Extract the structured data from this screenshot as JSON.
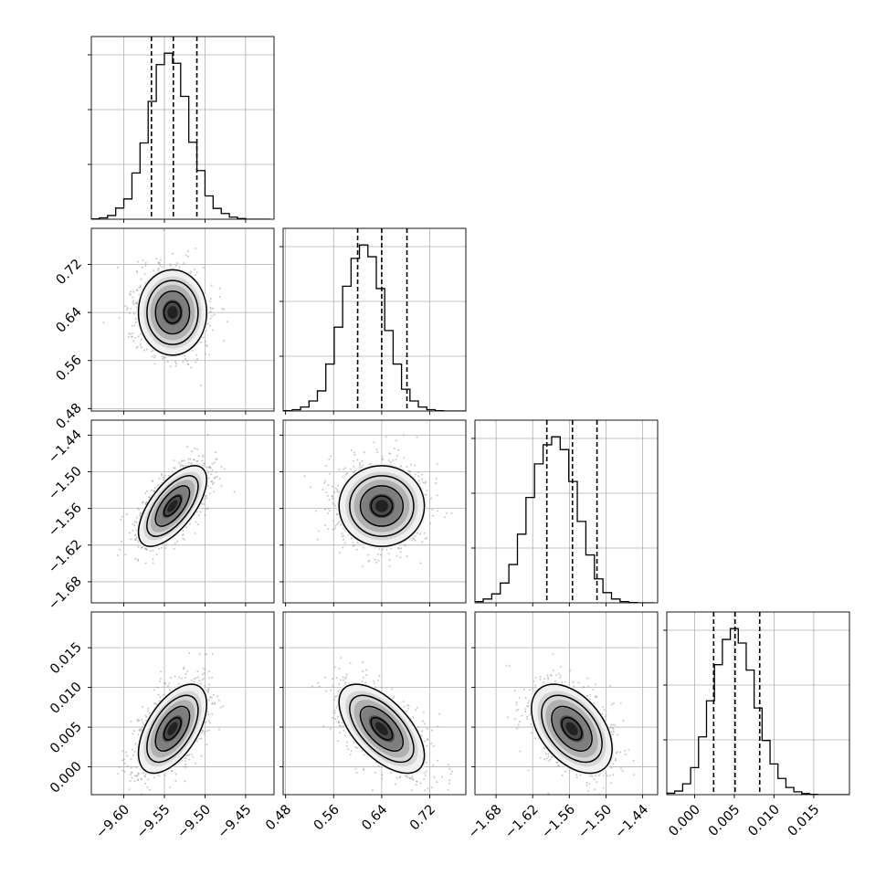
{
  "chart_data": {
    "type": "corner",
    "parameters": [
      {
        "range": [
          -9.64,
          -9.415
        ],
        "ticks": [
          -9.6,
          -9.55,
          -9.5,
          -9.45
        ],
        "tick_labels": [
          "−9.60",
          "−9.55",
          "−9.50",
          "−9.45"
        ],
        "quantiles": [
          -9.566,
          -9.539,
          -9.51
        ],
        "hist_bins": [
          -9.635,
          -9.625,
          -9.615,
          -9.605,
          -9.595,
          -9.585,
          -9.575,
          -9.565,
          -9.555,
          -9.545,
          -9.535,
          -9.525,
          -9.515,
          -9.505,
          -9.495,
          -9.485,
          -9.475,
          -9.465,
          -9.455,
          -9.445,
          -9.435,
          -9.425
        ],
        "hist_counts": [
          1,
          4,
          11,
          33,
          60,
          137,
          226,
          349,
          458,
          492,
          462,
          364,
          228,
          144,
          69,
          32,
          17,
          6,
          2,
          0,
          0,
          0
        ]
      },
      {
        "range": [
          0.476,
          0.78
        ],
        "ticks": [
          0.48,
          0.56,
          0.64,
          0.72
        ],
        "tick_labels": [
          "0.48",
          "0.56",
          "0.64",
          "0.72"
        ],
        "quantiles": [
          0.6,
          0.64,
          0.682
        ],
        "hist_bins": [
          0.484,
          0.498,
          0.512,
          0.526,
          0.54,
          0.554,
          0.568,
          0.582,
          0.596,
          0.61,
          0.624,
          0.638,
          0.652,
          0.666,
          0.68,
          0.694,
          0.708,
          0.722,
          0.736,
          0.75,
          0.764,
          0.778
        ],
        "hist_counts": [
          1,
          4,
          12,
          30,
          60,
          140,
          250,
          372,
          455,
          495,
          460,
          365,
          240,
          140,
          65,
          30,
          12,
          4,
          1,
          0,
          0,
          0
        ]
      },
      {
        "range": [
          -1.7145,
          -1.4155
        ],
        "ticks": [
          -1.68,
          -1.62,
          -1.56,
          -1.5,
          -1.44
        ],
        "tick_labels": [
          "−1.68",
          "−1.62",
          "−1.56",
          "−1.50",
          "−1.44"
        ],
        "quantiles": [
          -1.5969,
          -1.5549,
          -1.5148
        ],
        "hist_bins": [
          -1.708,
          -1.694,
          -1.68,
          -1.666,
          -1.652,
          -1.638,
          -1.624,
          -1.61,
          -1.596,
          -1.582,
          -1.568,
          -1.554,
          -1.54,
          -1.526,
          -1.512,
          -1.498,
          -1.484,
          -1.47,
          -1.456,
          -1.442,
          -1.428
        ],
        "hist_counts": [
          4,
          12,
          28,
          62,
          120,
          215,
          330,
          435,
          495,
          520,
          480,
          380,
          255,
          150,
          75,
          32,
          12,
          4,
          1,
          0,
          0
        ]
      },
      {
        "range": [
          -0.0035,
          0.0195
        ],
        "ticks": [
          0.0,
          0.005,
          0.01,
          0.015
        ],
        "tick_labels": [
          "0.000",
          "0.005",
          "0.010",
          "0.015"
        ],
        "quantiles": [
          0.0024,
          0.0051,
          0.0082
        ],
        "hist_bins": [
          -0.003,
          -0.002,
          -0.001,
          0.0,
          0.001,
          0.002,
          0.003,
          0.004,
          0.005,
          0.006,
          0.007,
          0.008,
          0.009,
          0.01,
          0.011,
          0.012,
          0.013,
          0.014,
          0.015,
          0.016,
          0.017,
          0.018,
          0.019
        ],
        "hist_counts": [
          4,
          10,
          30,
          75,
          160,
          260,
          360,
          430,
          460,
          420,
          345,
          240,
          150,
          85,
          45,
          20,
          8,
          3,
          1,
          0,
          0,
          0,
          0
        ]
      }
    ],
    "pairs": [
      {
        "col": 0,
        "row": 1,
        "center": [
          -9.54,
          0.64
        ],
        "sd": [
          0.021,
          0.0355
        ],
        "corr": 0.0
      },
      {
        "col": 0,
        "row": 2,
        "center": [
          -9.54,
          -1.556
        ],
        "sd": [
          0.021,
          0.033
        ],
        "corr": 0.65
      },
      {
        "col": 1,
        "row": 2,
        "center": [
          0.64,
          -1.556
        ],
        "sd": [
          0.0355,
          0.033
        ],
        "corr": 0.0
      },
      {
        "col": 0,
        "row": 3,
        "center": [
          -9.54,
          0.0048
        ],
        "sd": [
          0.021,
          0.0028
        ],
        "corr": 0.55
      },
      {
        "col": 1,
        "row": 3,
        "center": [
          0.64,
          0.0048
        ],
        "sd": [
          0.0355,
          0.0028
        ],
        "corr": -0.6
      },
      {
        "col": 2,
        "row": 3,
        "center": [
          -1.556,
          0.0048
        ],
        "sd": [
          0.033,
          0.0028
        ],
        "corr": -0.45
      }
    ],
    "contour_sigma_levels": [
      0.5,
      1.0,
      1.5,
      2.0
    ],
    "grid": true,
    "colors": {
      "scatter": "#9a9a9a",
      "ink": "#000000",
      "grid": "#b0b0b0"
    }
  }
}
